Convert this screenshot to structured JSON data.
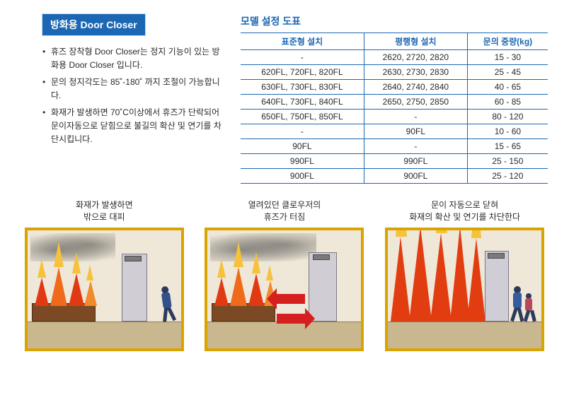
{
  "left": {
    "title": "방화용 Door Closer",
    "bullets": [
      "휴즈 장착형 Door Closer는 정지 기능이 있는 방화용 Door Closer 입니다.",
      "문의 정지각도는 85˚-180˚ 까지 조절이 가능합니다.",
      "화재가 발생하면 70˚C이상에서 휴즈가 단락되어 문이자동으로 닫힘으로 불길의 확산 및 연기를 차단시킵니다."
    ]
  },
  "table": {
    "title": "모델 설정 도표",
    "headers": [
      "표준형 설치",
      "평행형 설치",
      "문의 중량(kg)"
    ],
    "rows": [
      [
        "-",
        "2620, 2720, 2820",
        "15 - 30"
      ],
      [
        "620FL, 720FL, 820FL",
        "2630, 2730, 2830",
        "25 - 45"
      ],
      [
        "630FL, 730FL, 830FL",
        "2640, 2740, 2840",
        "40 - 65"
      ],
      [
        "640FL, 730FL, 840FL",
        "2650, 2750, 2850",
        "60 - 85"
      ],
      [
        "650FL, 750FL, 850FL",
        "-",
        "80 - 120"
      ],
      [
        "-",
        "90FL",
        "10 - 60"
      ],
      [
        "90FL",
        "-",
        "15 - 65"
      ],
      [
        "990FL",
        "990FL",
        "25 - 150"
      ],
      [
        "900FL",
        "900FL",
        "25 - 120"
      ]
    ],
    "border_color": "#1b67b3",
    "text_color": "#2a2a2a"
  },
  "illus": [
    {
      "caption_l1": "화재가 발생하면",
      "caption_l2": "밖으로 대피"
    },
    {
      "caption_l1": "열려있던 클로우저의",
      "caption_l2": "휴즈가 터짐"
    },
    {
      "caption_l1": "문이 자동으로 닫혀",
      "caption_l2": "화재의 확산 및 연기를 차단한다"
    }
  ],
  "colors": {
    "brand_blue": "#1b67b3",
    "frame_gold": "#d9a300",
    "flame_outer": "#e23c11",
    "flame_inner": "#f6c23a",
    "arrow_red": "#d61f1f"
  }
}
